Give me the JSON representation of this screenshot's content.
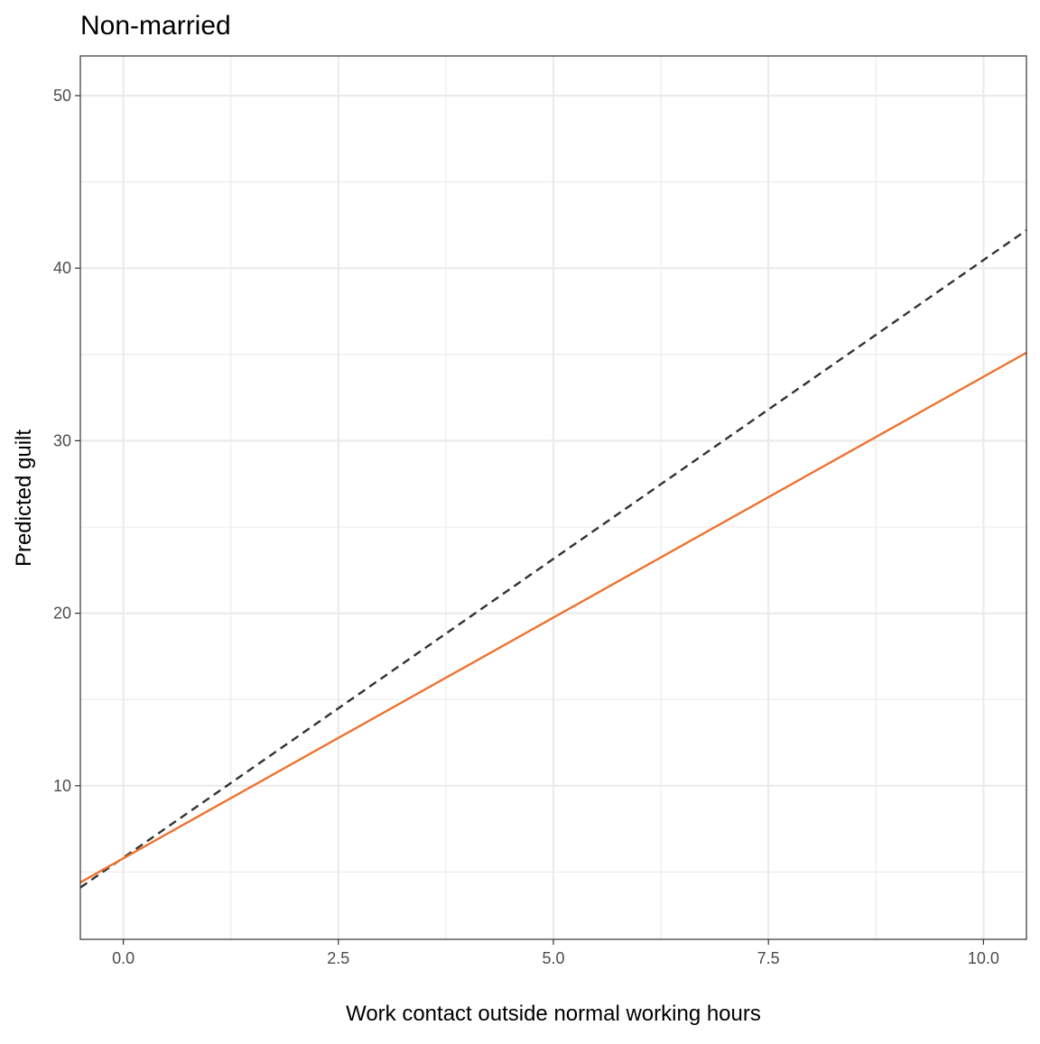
{
  "chart_data": {
    "type": "line",
    "title": "Non-married",
    "xlabel": "Work contact outside normal working hours",
    "ylabel": "Predicted guilt",
    "xlim": [
      -0.5,
      10.5
    ],
    "ylim": [
      1.1,
      52.3
    ],
    "x_ticks": [
      0,
      2.5,
      5,
      7.5,
      10
    ],
    "x_tick_labels": [
      "0.0",
      "2.5",
      "5.0",
      "7.5",
      "10.0"
    ],
    "y_ticks": [
      10,
      20,
      30,
      40,
      50
    ],
    "y_tick_labels": [
      "10",
      "20",
      "30",
      "40",
      "50"
    ],
    "grid": true,
    "legend": "none",
    "series": [
      {
        "style": "dashed",
        "color": "#333333",
        "x": [
          -0.5,
          10.5
        ],
        "y": [
          4.1,
          42.2
        ]
      },
      {
        "style": "solid",
        "color": "#ED7330",
        "x": [
          -0.5,
          10.5
        ],
        "y": [
          4.4,
          35.1
        ]
      }
    ]
  }
}
